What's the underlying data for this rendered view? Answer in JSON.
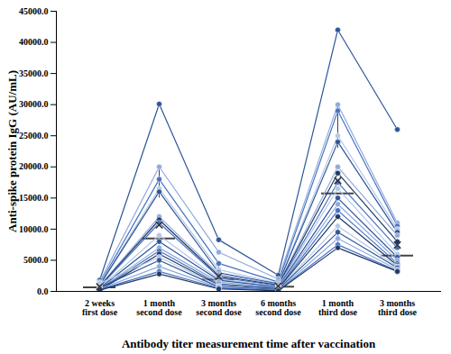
{
  "chart_data": {
    "type": "box",
    "x_label": "Antibody titer measurement time after vaccination",
    "y_label": "Anti-spike protein IgG (AU/mL)",
    "categories": [
      "2 weeks\nfirst dose",
      "1 month\nsecond dose",
      "3 months\nsecond dose",
      "6 months\nsecond dose",
      "1 month\nthird dose",
      "3 months\nthird dose"
    ],
    "marker": "circle",
    "ylim": [
      0,
      45000
    ],
    "yticks": [
      {
        "value": 0,
        "label": "0.0"
      },
      {
        "value": 5000,
        "label": "5000.0"
      },
      {
        "value": 10000,
        "label": "10000.0"
      },
      {
        "value": 15000,
        "label": "15000.0"
      },
      {
        "value": 20000,
        "label": "20000.0"
      },
      {
        "value": 25000,
        "label": "25000.0"
      },
      {
        "value": 30000,
        "label": "30000.0"
      },
      {
        "value": 35000,
        "label": "35000.0"
      },
      {
        "value": 40000,
        "label": "40000.0"
      },
      {
        "value": 45000,
        "label": "45000.0"
      }
    ],
    "grid": false,
    "series": [
      {
        "color": "#2f5597",
        "values": [
          1800,
          30100,
          8300,
          2600,
          42000,
          26000
        ]
      },
      {
        "color": "#8faadc",
        "values": [
          1500,
          20000,
          6300,
          2000,
          30000,
          11000
        ]
      },
      {
        "color": "#4472c4",
        "values": [
          1200,
          18000,
          4500,
          1500,
          29000,
          10500
        ]
      },
      {
        "color": "#b4c7e7",
        "values": [
          1100,
          16500,
          3500,
          1300,
          25000,
          10000
        ]
      },
      {
        "color": "#2f5597",
        "values": [
          1000,
          16000,
          3000,
          1200,
          24000,
          9500
        ]
      },
      {
        "color": "#8faadc",
        "values": [
          900,
          12000,
          2800,
          1100,
          20000,
          9000
        ]
      },
      {
        "color": "#203864",
        "values": [
          800,
          11500,
          2500,
          1000,
          19000,
          8000
        ]
      },
      {
        "color": "#4472c4",
        "values": [
          700,
          11000,
          2300,
          900,
          17500,
          7000
        ]
      },
      {
        "color": "#b4c7e7",
        "values": [
          600,
          9000,
          2000,
          800,
          16500,
          6000
        ]
      },
      {
        "color": "#2f5597",
        "values": [
          500,
          8000,
          1800,
          700,
          15000,
          5500
        ]
      },
      {
        "color": "#8faadc",
        "values": [
          400,
          7000,
          1500,
          600,
          14000,
          5000
        ]
      },
      {
        "color": "#4472c4",
        "values": [
          300,
          6500,
          1200,
          500,
          13000,
          4500
        ]
      },
      {
        "color": "#203864",
        "values": [
          200,
          6000,
          1000,
          400,
          12000,
          4200
        ]
      },
      {
        "color": "#b4c7e7",
        "values": [
          1300,
          5500,
          900,
          300,
          10500,
          4000
        ]
      },
      {
        "color": "#2f5597",
        "values": [
          600,
          5000,
          700,
          300,
          9500,
          3800
        ]
      },
      {
        "color": "#8faadc",
        "values": [
          400,
          4000,
          600,
          200,
          8500,
          3500
        ]
      },
      {
        "color": "#4472c4",
        "values": [
          300,
          3200,
          500,
          200,
          7500,
          3300
        ]
      },
      {
        "color": "#203864",
        "values": [
          200,
          2800,
          400,
          100,
          7000,
          3200
        ]
      }
    ]
  }
}
